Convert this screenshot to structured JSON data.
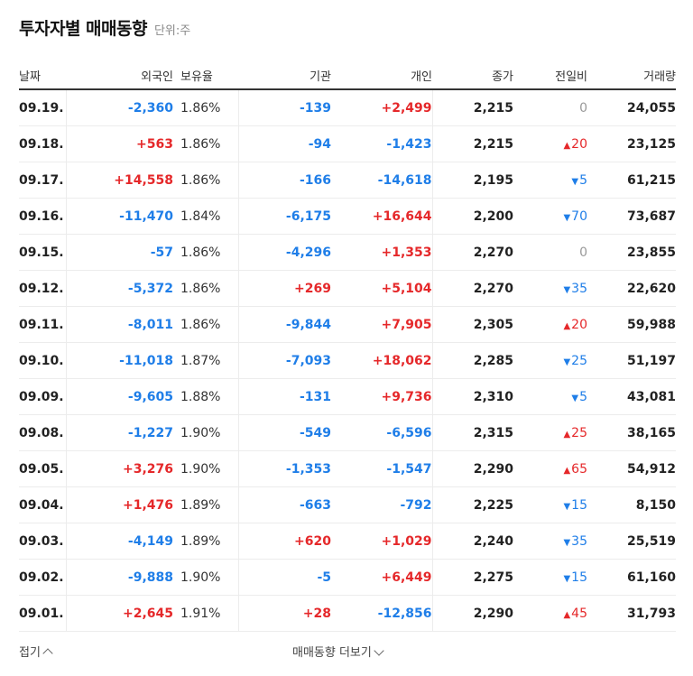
{
  "header": {
    "title": "투자자별 매매동향",
    "unit": "단위:주"
  },
  "columns": {
    "date": "날짜",
    "foreign": "외국인",
    "holding": "보유율",
    "institution": "기관",
    "individual": "개인",
    "close": "종가",
    "change": "전일비",
    "volume": "거래량"
  },
  "rows": [
    {
      "date": "09.19.",
      "foreign": "-2,360",
      "holding": "1.86%",
      "institution": "-139",
      "individual": "+2,499",
      "close": "2,215",
      "change_dir": "flat",
      "change": "0",
      "volume": "24,055"
    },
    {
      "date": "09.18.",
      "foreign": "+563",
      "holding": "1.86%",
      "institution": "-94",
      "individual": "-1,423",
      "close": "2,215",
      "change_dir": "up",
      "change": "20",
      "volume": "23,125"
    },
    {
      "date": "09.17.",
      "foreign": "+14,558",
      "holding": "1.86%",
      "institution": "-166",
      "individual": "-14,618",
      "close": "2,195",
      "change_dir": "down",
      "change": "5",
      "volume": "61,215"
    },
    {
      "date": "09.16.",
      "foreign": "-11,470",
      "holding": "1.84%",
      "institution": "-6,175",
      "individual": "+16,644",
      "close": "2,200",
      "change_dir": "down",
      "change": "70",
      "volume": "73,687"
    },
    {
      "date": "09.15.",
      "foreign": "-57",
      "holding": "1.86%",
      "institution": "-4,296",
      "individual": "+1,353",
      "close": "2,270",
      "change_dir": "flat",
      "change": "0",
      "volume": "23,855"
    },
    {
      "date": "09.12.",
      "foreign": "-5,372",
      "holding": "1.86%",
      "institution": "+269",
      "individual": "+5,104",
      "close": "2,270",
      "change_dir": "down",
      "change": "35",
      "volume": "22,620"
    },
    {
      "date": "09.11.",
      "foreign": "-8,011",
      "holding": "1.86%",
      "institution": "-9,844",
      "individual": "+7,905",
      "close": "2,305",
      "change_dir": "up",
      "change": "20",
      "volume": "59,988"
    },
    {
      "date": "09.10.",
      "foreign": "-11,018",
      "holding": "1.87%",
      "institution": "-7,093",
      "individual": "+18,062",
      "close": "2,285",
      "change_dir": "down",
      "change": "25",
      "volume": "51,197"
    },
    {
      "date": "09.09.",
      "foreign": "-9,605",
      "holding": "1.88%",
      "institution": "-131",
      "individual": "+9,736",
      "close": "2,310",
      "change_dir": "down",
      "change": "5",
      "volume": "43,081"
    },
    {
      "date": "09.08.",
      "foreign": "-1,227",
      "holding": "1.90%",
      "institution": "-549",
      "individual": "-6,596",
      "close": "2,315",
      "change_dir": "up",
      "change": "25",
      "volume": "38,165"
    },
    {
      "date": "09.05.",
      "foreign": "+3,276",
      "holding": "1.90%",
      "institution": "-1,353",
      "individual": "-1,547",
      "close": "2,290",
      "change_dir": "up",
      "change": "65",
      "volume": "54,912"
    },
    {
      "date": "09.04.",
      "foreign": "+1,476",
      "holding": "1.89%",
      "institution": "-663",
      "individual": "-792",
      "close": "2,225",
      "change_dir": "down",
      "change": "15",
      "volume": "8,150"
    },
    {
      "date": "09.03.",
      "foreign": "-4,149",
      "holding": "1.89%",
      "institution": "+620",
      "individual": "+1,029",
      "close": "2,240",
      "change_dir": "down",
      "change": "35",
      "volume": "25,519"
    },
    {
      "date": "09.02.",
      "foreign": "-9,888",
      "holding": "1.90%",
      "institution": "-5",
      "individual": "+6,449",
      "close": "2,275",
      "change_dir": "down",
      "change": "15",
      "volume": "61,160"
    },
    {
      "date": "09.01.",
      "foreign": "+2,645",
      "holding": "1.91%",
      "institution": "+28",
      "individual": "-12,856",
      "close": "2,290",
      "change_dir": "up",
      "change": "45",
      "volume": "31,793"
    }
  ],
  "footer": {
    "fold_label": "접기",
    "more_label": "매매동향 더보기"
  },
  "colors": {
    "up": "#e5282a",
    "down": "#1f7ee8",
    "flat": "#999999"
  },
  "icons": {
    "fold": "chevron-up-icon",
    "more": "chevron-down-icon"
  }
}
